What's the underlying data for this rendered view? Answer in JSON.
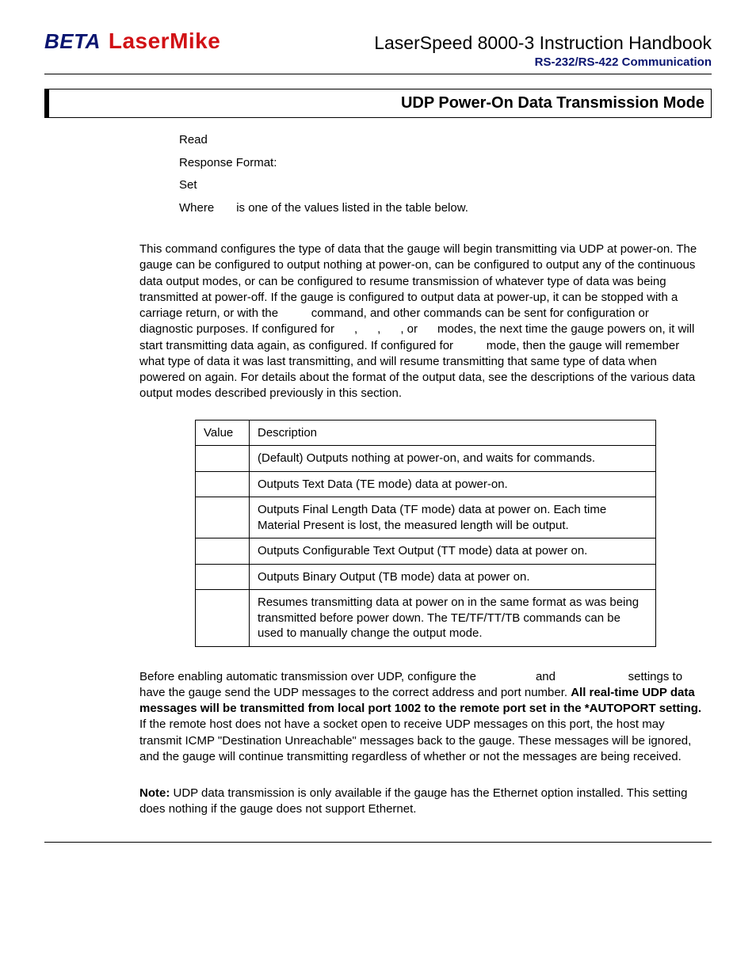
{
  "logo": {
    "left": "BETA",
    "right": "LaserMike"
  },
  "doc_title": "LaserSpeed 8000-3 Instruction Handbook",
  "subheader": "RS-232/RS-422 Communication",
  "section_title": "UDP Power-On Data Transmission Mode",
  "defs": {
    "read": "Read",
    "response": "Response Format:",
    "set": "Set",
    "where_label": "Where",
    "where_text": "is one of the values listed in the table below."
  },
  "para1": "This command configures the type of data that the gauge will begin transmitting via UDP at power-on.  The gauge can be configured to output nothing at power-on, can be configured to output any of the continuous data output modes, or can be configured to resume transmission of whatever type of data was being transmitted at power-off.  If the gauge is configured to output data at power-up, it can be stopped with a carriage return, or with the          command, and other commands can be sent for configuration or diagnostic purposes.  If configured for      ,      ,      , or      modes, the next time the gauge powers on, it will start transmitting data again, as configured.  If configured for          mode, then the gauge will remember what type of data it was last transmitting, and will resume transmitting that same type of data when powered on again.  For details about the format of the output data, see the descriptions of the various data output modes described previously in this section.",
  "table": {
    "headers": [
      "Value",
      "Description"
    ],
    "rows": [
      [
        "",
        "(Default) Outputs nothing at power-on, and waits for commands."
      ],
      [
        "",
        "Outputs Text Data (TE mode) data at power-on."
      ],
      [
        "",
        "Outputs Final Length Data (TF mode) data at power on.  Each time Material Present is lost, the measured length will be output."
      ],
      [
        "",
        "Outputs Configurable Text Output (TT mode) data at power on."
      ],
      [
        "",
        "Outputs Binary Output (TB mode) data at power on."
      ],
      [
        "",
        "Resumes transmitting data at power on in the same format as was being transmitted before power down.  The TE/TF/TT/TB commands can be used to manually change the output mode."
      ]
    ]
  },
  "para2_a": "Before enabling automatic transmission over UDP, configure the                  and                      settings to have the gauge send the UDP messages to the correct address and port number.  ",
  "para2_bold": "All real-time UDP data messages will be transmitted from local port 1002 to the remote port set in the *AUTOPORT setting.",
  "para2_b": "  If the remote host does not have a socket open to receive UDP messages on this port, the host may transmit ICMP \"Destination Unreachable\" messages back to the gauge.  These messages will be ignored, and the gauge will continue transmitting regardless of whether or not the messages are being received.",
  "note_label": "Note:",
  "note_text": " UDP data transmission is only available if the gauge has the Ethernet option installed.  This setting does nothing if the gauge does not support Ethernet."
}
